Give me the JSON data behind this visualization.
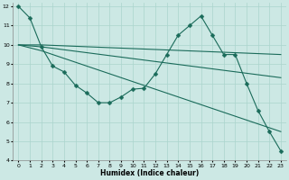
{
  "xlabel": "Humidex (Indice chaleur)",
  "background_color": "#cce8e4",
  "grid_color": "#aad4cc",
  "line_color": "#1a6b5a",
  "xlim": [
    -0.5,
    23.5
  ],
  "ylim": [
    4,
    12.2
  ],
  "yticks": [
    4,
    5,
    6,
    7,
    8,
    9,
    10,
    11,
    12
  ],
  "xticks": [
    0,
    1,
    2,
    3,
    4,
    5,
    6,
    7,
    8,
    9,
    10,
    11,
    12,
    13,
    14,
    15,
    16,
    17,
    18,
    19,
    20,
    21,
    22,
    23
  ],
  "lines": [
    {
      "x": [
        0,
        1,
        2,
        3,
        4,
        5,
        6,
        7,
        8,
        9,
        10,
        11,
        12,
        13,
        14,
        15,
        16,
        17,
        18,
        19,
        20,
        21,
        22,
        23
      ],
      "y": [
        12,
        11.4,
        9.9,
        8.9,
        8.6,
        7.9,
        7.5,
        7.0,
        7.0,
        7.3,
        7.7,
        7.75,
        8.5,
        9.5,
        10.5,
        11.0,
        11.5,
        10.5,
        9.5,
        9.5,
        8.0,
        6.6,
        5.5,
        4.5
      ],
      "has_marker": true,
      "markersize": 2.5
    },
    {
      "x": [
        0,
        2,
        23
      ],
      "y": [
        10.0,
        10.0,
        9.5
      ],
      "has_marker": false
    },
    {
      "x": [
        0,
        2,
        23
      ],
      "y": [
        10.0,
        9.9,
        8.3
      ],
      "has_marker": false
    },
    {
      "x": [
        0,
        2,
        23
      ],
      "y": [
        10.0,
        9.7,
        5.5
      ],
      "has_marker": false
    }
  ]
}
